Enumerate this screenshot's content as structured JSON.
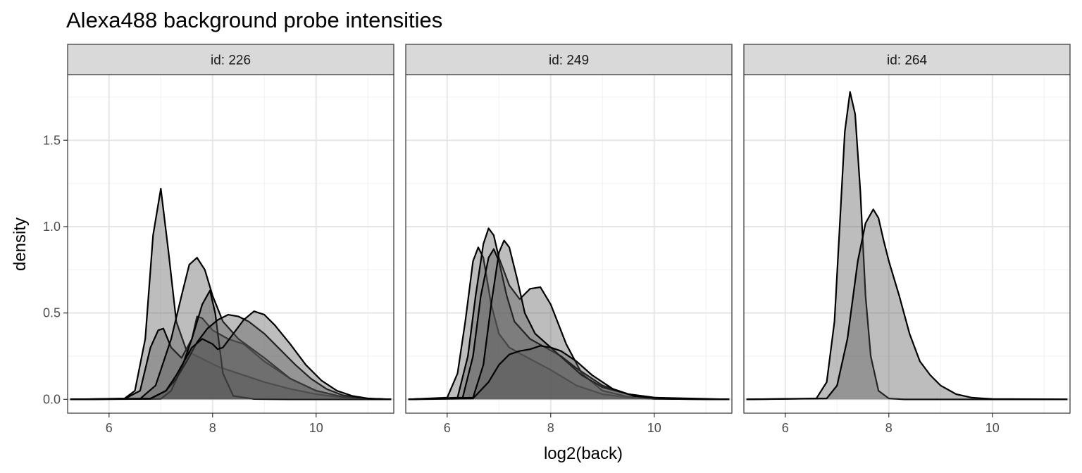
{
  "chart_data": {
    "type": "area",
    "title": "Alexa488 background probe intensities",
    "xlabel": "log2(back)",
    "ylabel": "density",
    "xlim": [
      5.2,
      11.5
    ],
    "ylim": [
      -0.08,
      1.88
    ],
    "x_ticks": [
      6,
      8,
      10
    ],
    "y_ticks": [
      0.0,
      0.5,
      1.0,
      1.5
    ],
    "y_tick_labels": [
      "0.0",
      "0.5",
      "1.0",
      "1.5"
    ],
    "x_tick_labels": [
      "6",
      "8",
      "10"
    ],
    "grid": true,
    "fill_color": "#595959",
    "fill_opacity": 0.4,
    "line_color": "#000000",
    "panels": [
      {
        "label": "id: 226",
        "series": [
          {
            "x": [
              5.25,
              6.3,
              6.5,
              6.7,
              6.85,
              7.0,
              7.15,
              7.3,
              7.5,
              7.7,
              7.9,
              8.1,
              8.5,
              9.0,
              9.5,
              10.0,
              10.5,
              11.0,
              11.45
            ],
            "y": [
              0,
              0.005,
              0.05,
              0.35,
              0.95,
              1.22,
              0.85,
              0.45,
              0.28,
              0.25,
              0.22,
              0.19,
              0.15,
              0.1,
              0.06,
              0.03,
              0.01,
              0.003,
              0
            ]
          },
          {
            "x": [
              5.25,
              6.3,
              6.6,
              6.8,
              6.95,
              7.05,
              7.2,
              7.4,
              7.6,
              7.7,
              7.8,
              8.0,
              8.3,
              8.6,
              9.0,
              9.5,
              10.0,
              10.5,
              11.0,
              11.45
            ],
            "y": [
              0,
              0.003,
              0.05,
              0.3,
              0.4,
              0.41,
              0.3,
              0.24,
              0.35,
              0.48,
              0.47,
              0.4,
              0.35,
              0.32,
              0.22,
              0.12,
              0.05,
              0.015,
              0.003,
              0
            ]
          },
          {
            "x": [
              5.25,
              6.6,
              6.9,
              7.2,
              7.4,
              7.55,
              7.7,
              7.85,
              8.0,
              8.2,
              8.5,
              9.0,
              9.5,
              10.0,
              10.5,
              11.0,
              11.45
            ],
            "y": [
              0,
              0.003,
              0.08,
              0.35,
              0.6,
              0.78,
              0.82,
              0.75,
              0.6,
              0.45,
              0.35,
              0.24,
              0.12,
              0.05,
              0.015,
              0.003,
              0
            ]
          },
          {
            "x": [
              5.25,
              7.0,
              7.2,
              7.4,
              7.6,
              7.8,
              7.95,
              8.05,
              8.2,
              8.4,
              8.8,
              9.5,
              10.0,
              11.45
            ],
            "y": [
              0,
              0.003,
              0.05,
              0.18,
              0.35,
              0.55,
              0.63,
              0.5,
              0.15,
              0.02,
              0.002,
              0,
              0,
              0
            ]
          },
          {
            "x": [
              5.25,
              6.8,
              7.1,
              7.3,
              7.5,
              7.7,
              7.9,
              8.1,
              8.3,
              8.5,
              8.7,
              9.0,
              9.3,
              9.6,
              9.9,
              10.2,
              10.5,
              10.8,
              11.1,
              11.45
            ],
            "y": [
              0,
              0.003,
              0.05,
              0.12,
              0.22,
              0.33,
              0.41,
              0.46,
              0.49,
              0.48,
              0.45,
              0.38,
              0.29,
              0.2,
              0.12,
              0.06,
              0.025,
              0.01,
              0.003,
              0
            ]
          },
          {
            "x": [
              5.25,
              6.8,
              7.1,
              7.3,
              7.6,
              7.8,
              8.0,
              8.1,
              8.2,
              8.4,
              8.6,
              8.8,
              9.0,
              9.2,
              9.5,
              9.8,
              10.1,
              10.4,
              10.7,
              11.0,
              11.45
            ],
            "y": [
              0,
              0.005,
              0.05,
              0.14,
              0.3,
              0.35,
              0.32,
              0.29,
              0.3,
              0.38,
              0.46,
              0.51,
              0.49,
              0.43,
              0.32,
              0.2,
              0.11,
              0.05,
              0.02,
              0.005,
              0
            ]
          }
        ]
      },
      {
        "label": "id: 249",
        "series": [
          {
            "x": [
              5.25,
              6.0,
              6.2,
              6.35,
              6.5,
              6.6,
              6.7,
              6.85,
              7.0,
              7.2,
              7.5,
              8.0,
              8.5,
              9.0,
              9.5,
              10.0,
              11.45
            ],
            "y": [
              0,
              0.01,
              0.15,
              0.45,
              0.8,
              0.88,
              0.82,
              0.55,
              0.38,
              0.3,
              0.25,
              0.17,
              0.08,
              0.03,
              0.01,
              0.003,
              0
            ]
          },
          {
            "x": [
              5.25,
              6.2,
              6.4,
              6.55,
              6.7,
              6.8,
              6.9,
              7.0,
              7.2,
              7.4,
              7.6,
              7.8,
              8.0,
              8.3,
              8.6,
              9.0,
              9.5,
              10.0,
              11.45
            ],
            "y": [
              0,
              0.01,
              0.25,
              0.6,
              0.9,
              0.99,
              0.95,
              0.82,
              0.66,
              0.58,
              0.64,
              0.65,
              0.55,
              0.32,
              0.15,
              0.05,
              0.015,
              0.003,
              0
            ]
          },
          {
            "x": [
              5.25,
              6.3,
              6.5,
              6.65,
              6.8,
              6.9,
              7.0,
              7.15,
              7.3,
              7.6,
              7.9,
              8.2,
              8.5,
              9.0,
              9.5,
              10.0,
              11.45
            ],
            "y": [
              0,
              0.01,
              0.25,
              0.6,
              0.82,
              0.87,
              0.8,
              0.6,
              0.45,
              0.35,
              0.3,
              0.25,
              0.18,
              0.08,
              0.03,
              0.01,
              0
            ]
          },
          {
            "x": [
              5.25,
              6.5,
              6.7,
              6.85,
              7.0,
              7.1,
              7.2,
              7.35,
              7.5,
              7.7,
              8.0,
              8.3,
              8.6,
              9.0,
              9.5,
              10.0,
              10.5,
              11.45
            ],
            "y": [
              0,
              0.01,
              0.2,
              0.55,
              0.85,
              0.92,
              0.88,
              0.7,
              0.5,
              0.38,
              0.3,
              0.22,
              0.14,
              0.07,
              0.03,
              0.01,
              0.003,
              0
            ]
          },
          {
            "x": [
              5.25,
              6.5,
              6.8,
              7.0,
              7.2,
              7.4,
              7.6,
              7.8,
              8.0,
              8.2,
              8.5,
              8.8,
              9.2,
              9.6,
              10.0,
              10.5,
              11.45
            ],
            "y": [
              0,
              0.005,
              0.1,
              0.2,
              0.26,
              0.28,
              0.29,
              0.31,
              0.3,
              0.28,
              0.22,
              0.14,
              0.06,
              0.02,
              0.008,
              0.002,
              0
            ]
          }
        ]
      },
      {
        "label": "id: 264",
        "series": [
          {
            "x": [
              5.25,
              6.6,
              6.8,
              6.95,
              7.05,
              7.15,
              7.25,
              7.35,
              7.45,
              7.55,
              7.65,
              7.8,
              8.0,
              8.3,
              11.45
            ],
            "y": [
              0,
              0.005,
              0.1,
              0.45,
              1.0,
              1.55,
              1.78,
              1.65,
              1.2,
              0.6,
              0.25,
              0.05,
              0.005,
              0,
              0
            ]
          },
          {
            "x": [
              5.25,
              6.8,
              7.0,
              7.2,
              7.4,
              7.55,
              7.7,
              7.8,
              7.9,
              8.0,
              8.2,
              8.4,
              8.6,
              8.8,
              9.0,
              9.3,
              9.6,
              10.0,
              11.45
            ],
            "y": [
              0,
              0.005,
              0.08,
              0.35,
              0.8,
              1.02,
              1.1,
              1.05,
              0.92,
              0.8,
              0.6,
              0.38,
              0.22,
              0.14,
              0.08,
              0.03,
              0.01,
              0.002,
              0
            ]
          }
        ]
      }
    ]
  }
}
